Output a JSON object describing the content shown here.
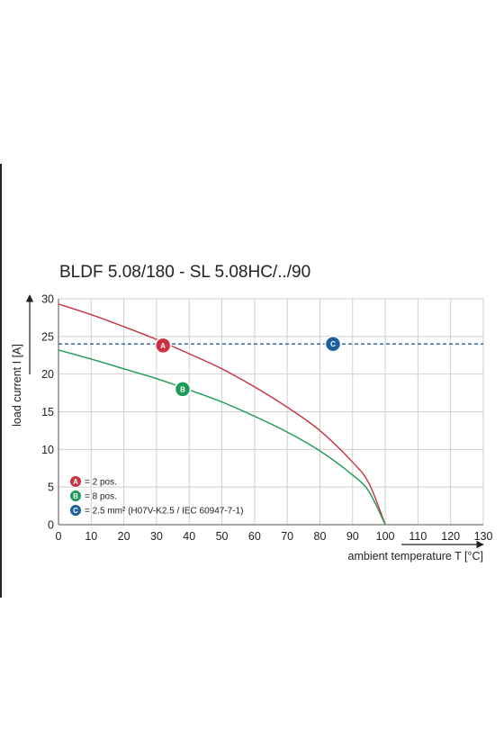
{
  "chart_data": {
    "type": "line",
    "title": "BLDF 5.08/180 - SL 5.08HC/../90",
    "xlabel": "ambient temperature T [°C]",
    "ylabel": "load current I [A]",
    "xlim": [
      0,
      130
    ],
    "ylim": [
      0,
      30
    ],
    "x_ticks": [
      0,
      10,
      20,
      30,
      40,
      50,
      60,
      70,
      80,
      90,
      100,
      110,
      120,
      130
    ],
    "y_ticks": [
      0,
      5,
      10,
      15,
      20,
      25,
      30
    ],
    "grid": true,
    "legend_position": "bottom-left",
    "series": [
      {
        "name": "A",
        "legend": "= 2 pos.",
        "color": "#c9323e",
        "x": [
          0,
          10,
          20,
          30,
          40,
          50,
          60,
          70,
          80,
          90,
          95,
          100
        ],
        "y": [
          29.3,
          27.9,
          26.3,
          24.6,
          22.7,
          20.7,
          18.3,
          15.6,
          12.5,
          8.3,
          5.5,
          0
        ]
      },
      {
        "name": "B",
        "legend": "= 8 pos.",
        "color": "#1d9a54",
        "x": [
          0,
          10,
          20,
          30,
          40,
          50,
          60,
          70,
          80,
          90,
          95,
          100
        ],
        "y": [
          23.2,
          22.0,
          20.7,
          19.4,
          17.9,
          16.3,
          14.4,
          12.3,
          9.8,
          6.6,
          4.4,
          0
        ]
      },
      {
        "name": "C",
        "legend": "= 2.5 mm² (H07V-K2.5 / IEC 60947-7-1)",
        "color": "#1f5f9e",
        "style": "dashed",
        "x": [
          0,
          130
        ],
        "y": [
          24,
          24
        ]
      }
    ],
    "annotations": [
      {
        "label": "A",
        "x": 32,
        "y": 23.8,
        "color": "#c9323e"
      },
      {
        "label": "B",
        "x": 38,
        "y": 18.0,
        "color": "#1d9a54"
      },
      {
        "label": "C",
        "x": 84,
        "y": 24.0,
        "color": "#1f5f9e"
      }
    ]
  }
}
